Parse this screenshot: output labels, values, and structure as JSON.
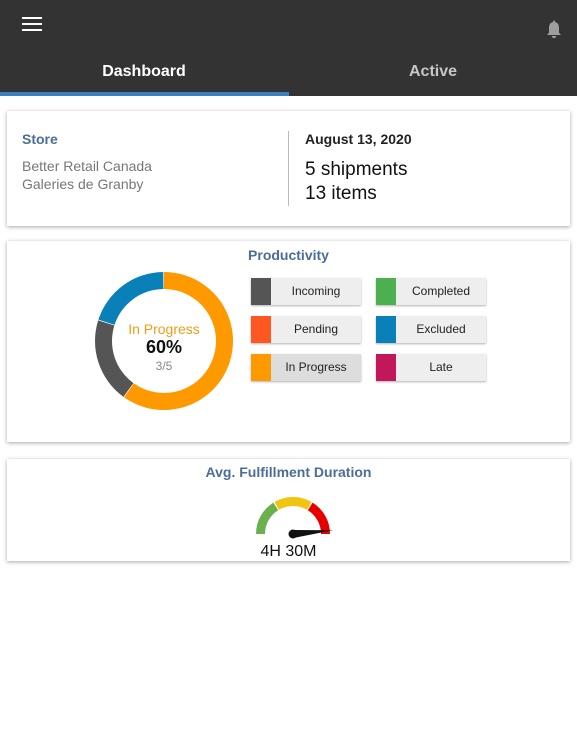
{
  "header": {
    "tabs": [
      {
        "label": "Dashboard",
        "selected": true
      },
      {
        "label": "Active",
        "selected": false
      }
    ],
    "accent_color": "#3f80bf",
    "icons": {
      "menu": "hamburger-menu-icon",
      "notifications": "bell-icon"
    }
  },
  "store_card": {
    "label": "Store",
    "name": "Better Retail Canada",
    "location": "Galeries de Granby",
    "date": "August 13, 2020",
    "shipments": "5 shipments",
    "items": "13 items"
  },
  "productivity": {
    "title": "Productivity",
    "donut": {
      "status": "In Progress",
      "percent": "60%",
      "count": "3/5",
      "segments": [
        {
          "status": "In Progress",
          "value": 3,
          "color": "#ff9900"
        },
        {
          "status": "Incoming",
          "value": 1,
          "color": "#555555"
        },
        {
          "status": "Excluded",
          "value": 1,
          "color": "#0a80b8"
        }
      ]
    },
    "legend": [
      {
        "label": "Incoming",
        "color": "#555555"
      },
      {
        "label": "Completed",
        "color": "#4caf50"
      },
      {
        "label": "Pending",
        "color": "#ff5722"
      },
      {
        "label": "Excluded",
        "color": "#0a80b8"
      },
      {
        "label": "In Progress",
        "color": "#ff9900",
        "selected": true
      },
      {
        "label": "Late",
        "color": "#c2185b"
      }
    ]
  },
  "duration": {
    "title": "Avg. Fulfillment Duration",
    "value": "4H 30M",
    "zone_colors": [
      "#6ab04c",
      "#f1c40f",
      "#e60000"
    ],
    "needle_level": 0.97
  }
}
